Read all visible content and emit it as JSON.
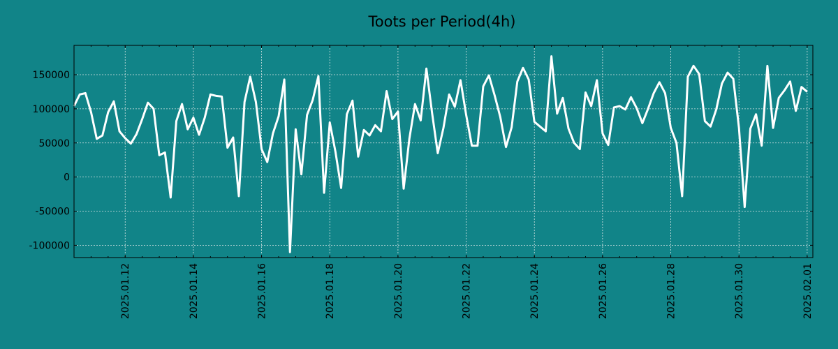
{
  "chart_data": {
    "type": "line",
    "title": "Toots per Period(4h)",
    "xlabel": "",
    "ylabel": "",
    "grid": true,
    "colors": {
      "background": "#118488",
      "line": "#ffffff",
      "axis": "#000000",
      "grid": "#d8e4e4"
    },
    "ylim": [
      -118000,
      193000
    ],
    "yticks": [
      -100000,
      -50000,
      0,
      50000,
      100000,
      150000
    ],
    "ytick_labels": [
      "-100000",
      "-50000",
      "0",
      "50000",
      "100000",
      "150000"
    ],
    "xlim": [
      "2025.01.10 12:00",
      "2025.02.01 04:00"
    ],
    "xtick_labels": [
      "2025.01.12",
      "2025.01.14",
      "2025.01.16",
      "2025.01.18",
      "2025.01.20",
      "2025.01.22",
      "2025.01.24",
      "2025.01.26",
      "2025.01.28",
      "2025.01.30",
      "2025.02.01"
    ],
    "series": [
      {
        "name": "Toots per Period(4h)",
        "start": "2025.01.10 12:00",
        "interval_hours": 4,
        "values": [
          104000,
          121000,
          123000,
          95000,
          56000,
          61000,
          95000,
          111000,
          67000,
          57000,
          49000,
          63000,
          85000,
          109000,
          100000,
          32000,
          36000,
          -30000,
          82000,
          107000,
          70000,
          87000,
          62000,
          87000,
          121000,
          119000,
          118000,
          43000,
          58000,
          -28000,
          110000,
          147000,
          110000,
          41000,
          22000,
          64000,
          89000,
          143000,
          -110000,
          70000,
          4000,
          91000,
          113000,
          148000,
          -23000,
          80000,
          37000,
          -16000,
          92000,
          112000,
          30000,
          69000,
          61000,
          76000,
          67000,
          126000,
          85000,
          96000,
          -17000,
          56000,
          107000,
          83000,
          159000,
          94000,
          35000,
          72000,
          121000,
          103000,
          142000,
          91000,
          46000,
          46000,
          133000,
          149000,
          120000,
          88000,
          44000,
          73000,
          140000,
          160000,
          143000,
          81000,
          74000,
          67000,
          177000,
          93000,
          116000,
          71000,
          50000,
          41000,
          124000,
          104000,
          142000,
          64000,
          47000,
          102000,
          104000,
          99000,
          117000,
          101000,
          79000,
          100000,
          123000,
          139000,
          123000,
          72000,
          50000,
          -28000,
          147000,
          163000,
          151000,
          82000,
          74000,
          99000,
          137000,
          153000,
          144000,
          72000,
          -44000,
          71000,
          92000,
          46000,
          163000,
          72000,
          116000,
          127000,
          140000,
          97000,
          132000,
          125000
        ]
      }
    ]
  }
}
